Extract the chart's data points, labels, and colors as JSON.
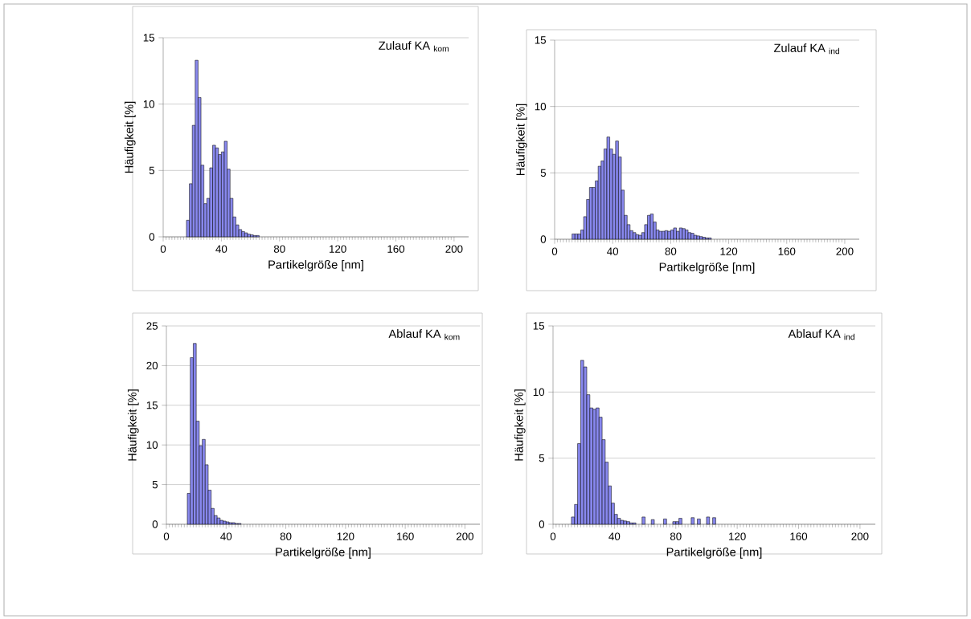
{
  "chart_data": [
    {
      "type": "histogram",
      "title": "Zulauf KA $_{kom}$",
      "xlabel": "Partikelgröße [nm]",
      "ylabel": "Häufigkeit [%]",
      "color": "#8888ee",
      "grid": "y",
      "xlim": [
        0,
        210
      ],
      "ylim": [
        0,
        15
      ],
      "xticks": [
        0,
        40,
        80,
        120,
        160,
        200
      ],
      "yticks": [
        0,
        5,
        10,
        15
      ],
      "bins": [
        16,
        18,
        20,
        22,
        24,
        26,
        28,
        30,
        32,
        34,
        36,
        38,
        40,
        42,
        44,
        46,
        48,
        50,
        52,
        54,
        56,
        58,
        60,
        62,
        64,
        66
      ],
      "values": [
        1.25,
        4.0,
        8.4,
        13.3,
        10.5,
        5.4,
        2.5,
        2.9,
        5.2,
        6.9,
        6.7,
        6.2,
        6.4,
        7.2,
        5.1,
        2.9,
        1.5,
        0.9,
        0.55,
        0.4,
        0.3,
        0.2,
        0.15,
        0.1,
        0.1
      ]
    },
    {
      "type": "histogram",
      "title": "Zulauf KA $_{ind}$",
      "xlabel": "Partikelgröße [nm]",
      "ylabel": "Häufigkeit [%]",
      "color": "#8888ee",
      "grid": "y",
      "xlim": [
        0,
        210
      ],
      "ylim": [
        0,
        15
      ],
      "xticks": [
        0,
        40,
        80,
        120,
        160,
        200
      ],
      "yticks": [
        0,
        5,
        10,
        15
      ],
      "bins": [
        12,
        14,
        16,
        18,
        20,
        22,
        24,
        26,
        28,
        30,
        32,
        34,
        36,
        38,
        40,
        42,
        44,
        46,
        48,
        50,
        52,
        54,
        56,
        58,
        60,
        62,
        64,
        66,
        68,
        70,
        72,
        74,
        76,
        78,
        80,
        82,
        84,
        86,
        88,
        90,
        92,
        94,
        96,
        98,
        100,
        102,
        104,
        106,
        108
      ],
      "values": [
        0.4,
        0.4,
        0.4,
        0.7,
        1.7,
        3.0,
        3.9,
        3.9,
        4.4,
        5.5,
        5.9,
        6.8,
        7.7,
        6.8,
        6.4,
        7.4,
        6.2,
        3.7,
        1.8,
        1.1,
        0.65,
        0.5,
        0.35,
        0.3,
        0.5,
        1.1,
        1.8,
        1.9,
        1.3,
        0.7,
        0.6,
        0.6,
        0.65,
        0.6,
        0.7,
        0.85,
        0.6,
        0.85,
        0.8,
        0.7,
        0.5,
        0.45,
        0.3,
        0.25,
        0.2,
        0.15,
        0.1,
        0.1
      ]
    },
    {
      "type": "histogram",
      "title": "Ablauf KA $_{kom}$",
      "xlabel": "Partikelgröße [nm]",
      "ylabel": "Häufigkeit [%]",
      "color": "#8888ee",
      "grid": "y",
      "xlim": [
        0,
        210
      ],
      "ylim": [
        0,
        25
      ],
      "xticks": [
        0,
        40,
        80,
        120,
        160,
        200
      ],
      "yticks": [
        0,
        5,
        10,
        15,
        20,
        25
      ],
      "bins": [
        14,
        16,
        18,
        20,
        22,
        24,
        26,
        28,
        30,
        32,
        34,
        36,
        38,
        40,
        42,
        44,
        46,
        48,
        50
      ],
      "values": [
        3.9,
        21.0,
        22.8,
        13.0,
        9.9,
        10.7,
        7.5,
        4.3,
        2.0,
        1.1,
        0.8,
        0.5,
        0.4,
        0.3,
        0.2,
        0.2,
        0.1,
        0.1
      ]
    },
    {
      "type": "histogram",
      "title": "Ablauf KA $_{ind}$",
      "xlabel": "Partikelgröße [nm]",
      "ylabel": "Häufigkeit [%]",
      "color": "#8888ee",
      "grid": "y",
      "xlim": [
        0,
        210
      ],
      "ylim": [
        0,
        15
      ],
      "xticks": [
        0,
        40,
        80,
        120,
        160,
        200
      ],
      "yticks": [
        0,
        5,
        10,
        15
      ],
      "bins": [
        12,
        14,
        16,
        18,
        20,
        22,
        24,
        26,
        28,
        30,
        32,
        34,
        36,
        38,
        40,
        42,
        44,
        46,
        48,
        50,
        52,
        54,
        56,
        58,
        60,
        62,
        64,
        66,
        68,
        70,
        72,
        74,
        76,
        78,
        80,
        82,
        84,
        86,
        88,
        90,
        92,
        94,
        96,
        98,
        100,
        102,
        104,
        106
      ],
      "values": [
        0.55,
        1.5,
        6.1,
        12.4,
        11.9,
        9.8,
        8.8,
        8.7,
        8.8,
        8.1,
        6.4,
        4.7,
        2.9,
        1.6,
        0.75,
        0.45,
        0.3,
        0.25,
        0.2,
        0.1,
        0.1,
        null,
        null,
        0.55,
        null,
        null,
        0.35,
        null,
        null,
        null,
        0.4,
        null,
        null,
        0.2,
        0.2,
        0.45,
        null,
        null,
        null,
        0.5,
        null,
        0.4,
        null,
        null,
        0.55,
        null,
        0.5
      ]
    }
  ]
}
